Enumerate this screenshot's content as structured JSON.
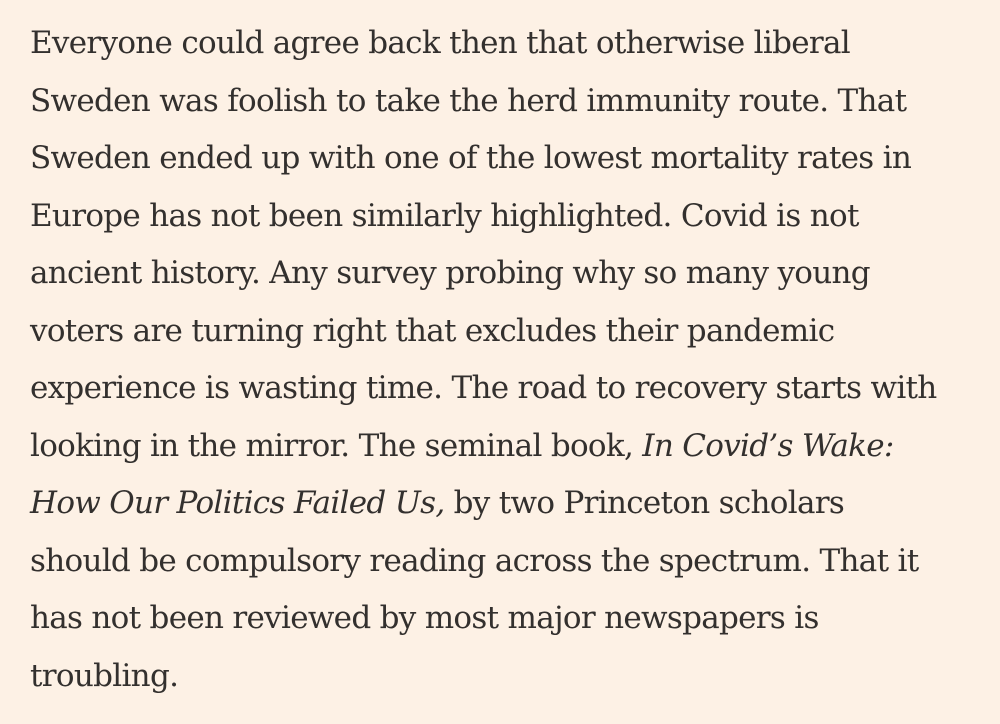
{
  "article": {
    "lines": [
      "Everyone could agree back then that otherwise liberal",
      "Sweden was foolish to take the herd immunity route. That",
      "Sweden ended up with one of the lowest mortality rates in",
      "Europe has not been similarly highlighted. Covid is not",
      "ancient history. Any survey probing why so many young",
      "voters are turning right that excludes their pandemic",
      "experience is wasting time. The road to recovery starts with",
      {
        "before": "looking in the mirror. The seminal book, ",
        "italic": "In Covid’s Wake:"
      },
      {
        "italic": "How Our Politics Failed Us,",
        "after": " by two Princeton scholars"
      },
      "should be compulsory reading across the spectrum. That it",
      "has not been reviewed by most major newspapers is",
      "troubling."
    ]
  }
}
